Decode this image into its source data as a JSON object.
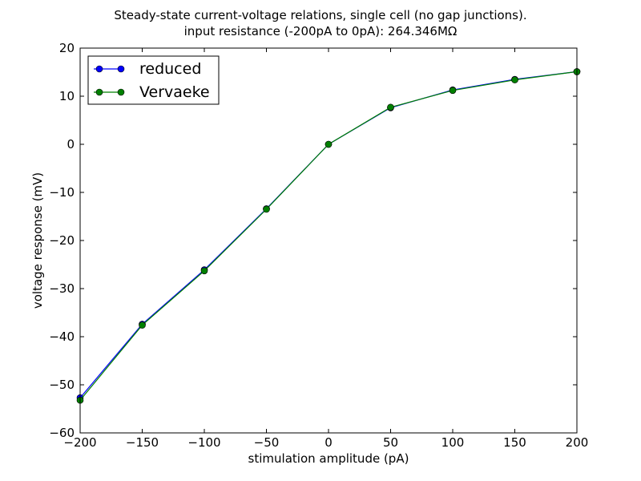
{
  "chart_data": {
    "type": "line",
    "title_lines": [
      "Steady-state current-voltage relations, single cell (no gap junctions).",
      "input resistance (-200pA to 0pA): 264.346MΩ"
    ],
    "xlabel": "stimulation amplitude (pA)",
    "ylabel": "voltage response (mV)",
    "xlim": [
      -200,
      200
    ],
    "ylim": [
      -60,
      20
    ],
    "xticks": [
      -200,
      -150,
      -100,
      -50,
      0,
      50,
      100,
      150,
      200
    ],
    "yticks": [
      -60,
      -50,
      -40,
      -30,
      -20,
      -10,
      0,
      10,
      20
    ],
    "grid": false,
    "legend_position": "top-left",
    "x": [
      -200,
      -150,
      -100,
      -50,
      0,
      50,
      100,
      150,
      200
    ],
    "series": [
      {
        "name": "reduced",
        "color": "#0000ff",
        "values": [
          -52.7,
          -37.4,
          -26.1,
          -13.4,
          0.0,
          7.6,
          11.3,
          13.5,
          15.1
        ]
      },
      {
        "name": "Vervaeke",
        "color": "#008000",
        "values": [
          -53.2,
          -37.6,
          -26.3,
          -13.5,
          0.0,
          7.7,
          11.2,
          13.4,
          15.1
        ]
      }
    ]
  }
}
